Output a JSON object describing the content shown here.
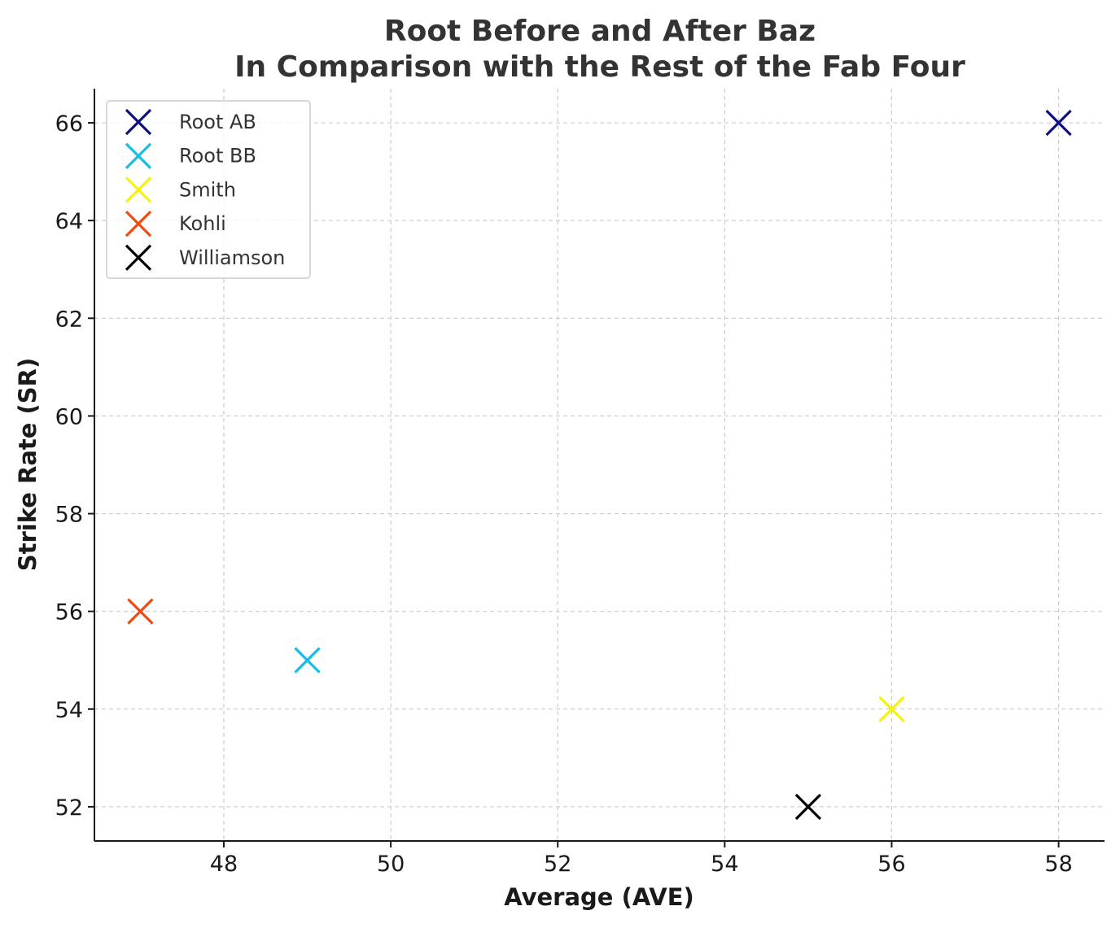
{
  "chart_data": {
    "type": "scatter",
    "title": [
      "Root Before and After Baz",
      "In Comparison with the Rest of the Fab Four"
    ],
    "xlabel": "Average (AVE)",
    "ylabel": "Strike Rate (SR)",
    "xlim": [
      46.45,
      58.55
    ],
    "ylim": [
      51.3,
      66.7
    ],
    "xticks": [
      48,
      50,
      52,
      54,
      56,
      58
    ],
    "yticks": [
      52,
      54,
      56,
      58,
      60,
      62,
      64,
      66
    ],
    "grid": true,
    "legend_position": "top-left",
    "marker": "x",
    "series": [
      {
        "name": "Root AB",
        "x": 58,
        "y": 66,
        "color": "#0f0f80"
      },
      {
        "name": "Root BB",
        "x": 49,
        "y": 55,
        "color": "#16bde8"
      },
      {
        "name": "Smith",
        "x": 56,
        "y": 54,
        "color": "#f4f40a"
      },
      {
        "name": "Kohli",
        "x": 47,
        "y": 56,
        "color": "#f24a0c"
      },
      {
        "name": "Williamson",
        "x": 55,
        "y": 52,
        "color": "#000000"
      }
    ]
  }
}
